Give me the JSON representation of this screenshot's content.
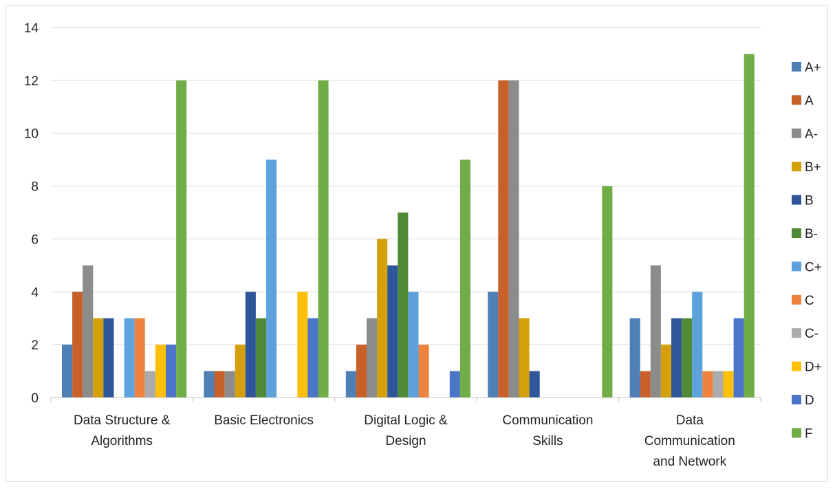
{
  "chart_data": {
    "type": "bar",
    "title": "",
    "xlabel": "",
    "ylabel": "",
    "ylim": [
      0,
      14
    ],
    "yticks": [
      0,
      2,
      4,
      6,
      8,
      10,
      12,
      14
    ],
    "grid": true,
    "legend_position": "right",
    "categories": [
      [
        "Data Structure &",
        "Algorithms"
      ],
      [
        "Basic Electronics"
      ],
      [
        "Digital Logic &",
        "Design"
      ],
      [
        "Communication",
        "Skills"
      ],
      [
        "Data",
        "Communication",
        "and Network"
      ]
    ],
    "series": [
      {
        "name": "A+",
        "color": "#4e7fb5",
        "values": [
          2,
          1,
          1,
          4,
          3
        ]
      },
      {
        "name": "A",
        "color": "#c8602a",
        "values": [
          4,
          1,
          2,
          12,
          1
        ]
      },
      {
        "name": "A-",
        "color": "#8c8c8c",
        "values": [
          5,
          1,
          3,
          12,
          5
        ]
      },
      {
        "name": "B+",
        "color": "#d4a10a",
        "values": [
          3,
          2,
          6,
          3,
          2
        ]
      },
      {
        "name": "B",
        "color": "#2f569a",
        "values": [
          3,
          4,
          5,
          1,
          3
        ]
      },
      {
        "name": "B-",
        "color": "#4f8a36",
        "values": [
          0,
          3,
          7,
          0,
          3
        ]
      },
      {
        "name": "C+",
        "color": "#5da2dc",
        "values": [
          3,
          9,
          4,
          0,
          4
        ]
      },
      {
        "name": "C",
        "color": "#ee8340",
        "values": [
          3,
          0,
          2,
          0,
          1
        ]
      },
      {
        "name": "C-",
        "color": "#ababab",
        "values": [
          1,
          0,
          0,
          0,
          1
        ]
      },
      {
        "name": "D+",
        "color": "#fdc00a",
        "values": [
          2,
          4,
          0,
          0,
          1
        ]
      },
      {
        "name": "D",
        "color": "#4a75c8",
        "values": [
          2,
          3,
          1,
          0,
          3
        ]
      },
      {
        "name": "F",
        "color": "#71ad47",
        "values": [
          12,
          12,
          9,
          8,
          13
        ]
      }
    ]
  }
}
